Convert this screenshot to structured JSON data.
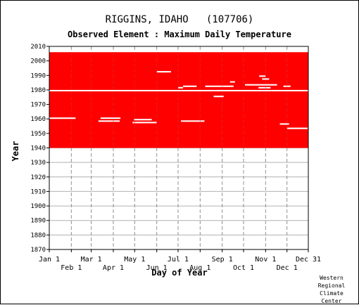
{
  "title": "RIGGINS, IDAHO   (107706)",
  "subtitle": "Observed Element : Maximum Daily Temperature",
  "credit": [
    "Western",
    "Regional",
    "Climate",
    "Center"
  ],
  "chart_data": {
    "type": "heatmap",
    "title": "RIGGINS, IDAHO   (107706)",
    "subtitle": "Observed Element : Maximum Daily Temperature",
    "xlabel": "Day of Year",
    "ylabel": "Year",
    "xlim": [
      1,
      365
    ],
    "ylim": [
      1870,
      2010
    ],
    "grid": true,
    "color": "#ff0000",
    "ytick_values": [
      1870,
      1880,
      1890,
      1900,
      1910,
      1920,
      1930,
      1940,
      1950,
      1960,
      1970,
      1980,
      1990,
      2000,
      2010
    ],
    "ytick_labels": [
      "1870",
      "1880",
      "1890",
      "1900",
      "1910",
      "1920",
      "1930",
      "1940",
      "1950",
      "1960",
      "1970",
      "1980",
      "1990",
      "2000",
      "2010"
    ],
    "xticks_top": [
      {
        "label": "Jan 1",
        "day": 1
      },
      {
        "label": "Mar 1",
        "day": 60
      },
      {
        "label": "May 1",
        "day": 121
      },
      {
        "label": "Jul 1",
        "day": 182
      },
      {
        "label": "Sep 1",
        "day": 244
      },
      {
        "label": "Nov 1",
        "day": 305
      },
      {
        "label": "Dec 31",
        "day": 365
      }
    ],
    "xticks_bottom": [
      {
        "label": "Feb 1",
        "day": 32
      },
      {
        "label": "Apr 1",
        "day": 91
      },
      {
        "label": "Jun 1",
        "day": 152
      },
      {
        "label": "Aug 1",
        "day": 213
      },
      {
        "label": "Oct 1",
        "day": 274
      },
      {
        "label": "Dec 1",
        "day": 335
      }
    ],
    "data_period": {
      "start_year": 1940,
      "end_year": 2005
    },
    "missing_full_years": [
      1979
    ],
    "missing_segments": [
      {
        "year": 1992,
        "start_day": 152,
        "end_day": 172
      },
      {
        "year": 1989,
        "start_day": 296,
        "end_day": 305
      },
      {
        "year": 1987,
        "start_day": 300,
        "end_day": 310
      },
      {
        "year": 1985,
        "start_day": 255,
        "end_day": 262
      },
      {
        "year": 1983,
        "start_day": 276,
        "end_day": 321
      },
      {
        "year": 1982,
        "start_day": 189,
        "end_day": 208
      },
      {
        "year": 1982,
        "start_day": 220,
        "end_day": 260
      },
      {
        "year": 1982,
        "start_day": 330,
        "end_day": 340
      },
      {
        "year": 1981,
        "start_day": 182,
        "end_day": 189
      },
      {
        "year": 1981,
        "start_day": 295,
        "end_day": 312
      },
      {
        "year": 1975,
        "start_day": 232,
        "end_day": 246
      },
      {
        "year": 1960,
        "start_day": 1,
        "end_day": 38
      },
      {
        "year": 1960,
        "start_day": 73,
        "end_day": 101
      },
      {
        "year": 1959,
        "start_day": 120,
        "end_day": 145
      },
      {
        "year": 1958,
        "start_day": 70,
        "end_day": 100
      },
      {
        "year": 1958,
        "start_day": 186,
        "end_day": 219
      },
      {
        "year": 1957,
        "start_day": 118,
        "end_day": 152
      },
      {
        "year": 1956,
        "start_day": 325,
        "end_day": 338
      },
      {
        "year": 1953,
        "start_day": 335,
        "end_day": 364
      }
    ]
  }
}
